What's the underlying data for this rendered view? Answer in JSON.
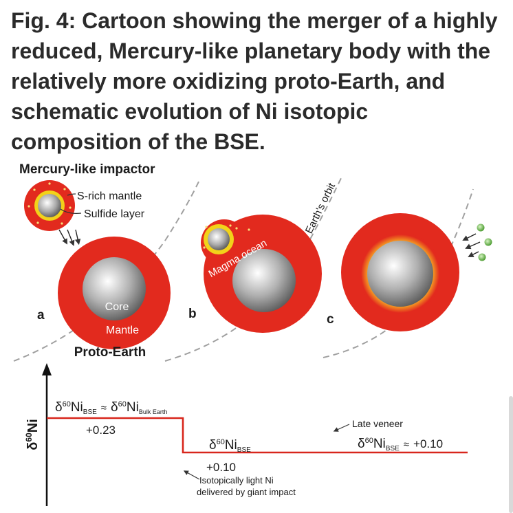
{
  "caption": "Fig. 4: Cartoon showing the merger of a highly reduced, Mercury-like planetary body with the relatively more oxidizing proto-Earth, and schematic evolution of Ni isotopic composition of the BSE.",
  "diagram": {
    "impactor_title": "Mercury-like impactor",
    "s_rich_mantle": "S-rich mantle",
    "sulfide_layer": "Sulfide layer",
    "core": "Core",
    "mantle": "Mantle",
    "proto_earth": "Proto-Earth",
    "magma_ocean": "Magma ocean",
    "earths_orbit": "Earth's orbit",
    "panel_a": "a",
    "panel_b": "b",
    "panel_c": "c"
  },
  "chart_data": {
    "type": "line",
    "ylabel_prefix": "δ",
    "ylabel_sup": "60",
    "ylabel_suffix": "Ni",
    "stages": [
      {
        "stage": "a",
        "value": 0.23,
        "label": "+0.23"
      },
      {
        "stage": "b",
        "value": 0.1,
        "label": "+0.10"
      },
      {
        "stage": "c",
        "value": 0.1,
        "label": "+0.10"
      }
    ],
    "annotations": {
      "stage1_delta": "δ",
      "stage1_sup": "60",
      "stage1_ni": "Ni",
      "stage1_sub": "BSE",
      "approx": "≈",
      "stage1_delta2": "δ",
      "stage1_sup2": "60",
      "stage1_ni2": "Ni",
      "stage1_sub2": "Bulk Earth",
      "stage2_delta": "δ",
      "stage2_sup": "60",
      "stage2_ni": "Ni",
      "stage2_sub": "BSE",
      "stage3_delta": "δ",
      "stage3_sup": "60",
      "stage3_ni": "Ni",
      "stage3_sub": "BSE",
      "stage3_value": "+0.10",
      "impact_note_1": "Isotopically light Ni",
      "impact_note_2": "delivered by giant impact",
      "late_veneer": "Late veneer"
    }
  },
  "colors": {
    "mantle_red": "#e22a1e",
    "sulfide_yellow": "#f2d21a",
    "veneer_green": "#7fcf5a",
    "line_red": "#d8261c"
  }
}
